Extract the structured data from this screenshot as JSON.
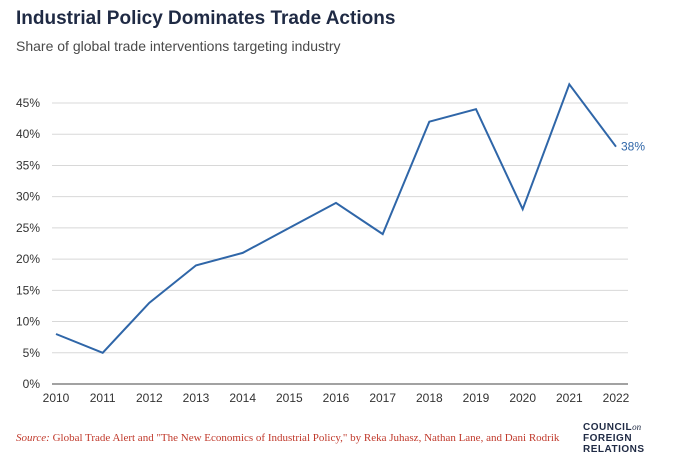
{
  "header": {
    "title": "Industrial Policy Dominates Trade Actions",
    "subtitle": "Share of global trade interventions targeting industry"
  },
  "chart_data": {
    "type": "line",
    "x": [
      "2010",
      "2011",
      "2012",
      "2013",
      "2014",
      "2015",
      "2016",
      "2017",
      "2018",
      "2019",
      "2020",
      "2021",
      "2022"
    ],
    "series": [
      {
        "values": [
          8,
          5,
          13,
          19,
          21,
          25,
          29,
          24,
          42,
          44,
          28,
          48,
          38
        ]
      }
    ],
    "ylim": [
      0,
      45
    ],
    "yticks": [
      0,
      5,
      10,
      15,
      20,
      25,
      30,
      35,
      40,
      45
    ],
    "ytick_labels": [
      "0%",
      "5%",
      "10%",
      "15%",
      "20%",
      "25%",
      "30%",
      "35%",
      "40%",
      "45%"
    ],
    "end_label": "38%",
    "grid": true,
    "line_color": "#2f66a8"
  },
  "footer": {
    "source_label": "Source:",
    "source_text": "Global Trade Alert and \"The New Economics of Industrial Policy,\" by Reka Juhasz, Nathan Lane, and Dani Rodrik",
    "logo_line1": "COUNCIL",
    "logo_on": "on",
    "logo_line2": "FOREIGN",
    "logo_line3": "RELATIONS"
  }
}
